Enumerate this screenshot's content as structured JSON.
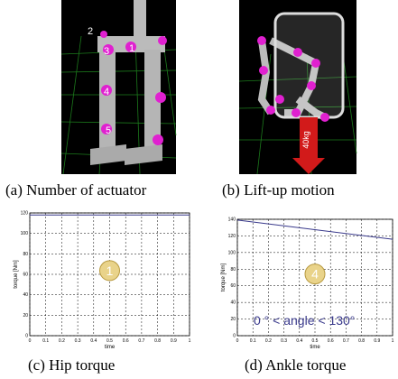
{
  "panels": [
    {
      "caption": "(a) Number of actuator",
      "labels": [
        "2",
        "3",
        "1",
        "4",
        "5"
      ]
    },
    {
      "caption": "(b) Lift-up motion",
      "load": "40kg"
    }
  ],
  "chart_data": [
    {
      "type": "line",
      "caption": "(c) Hip torque",
      "ylabel": "torque [Nm]",
      "xlabel": "time",
      "badge": "1",
      "x": [
        0,
        1
      ],
      "series": [
        {
          "color": "#3a3a8c",
          "values": [
            118,
            118
          ]
        }
      ],
      "xlim": [
        0,
        1
      ],
      "ylim": [
        0,
        120
      ],
      "xticks": [
        0,
        0.1,
        0.2,
        0.3,
        0.4,
        0.5,
        0.6,
        0.7,
        0.8,
        0.9,
        1
      ],
      "yticks": [
        0,
        20,
        40,
        60,
        80,
        100,
        120
      ],
      "grid": true
    },
    {
      "type": "line",
      "caption": "(d) Ankle torque",
      "ylabel": "torque [Nm]",
      "xlabel": "time",
      "badge": "4",
      "annotation": "0 ° < angle < 130°",
      "x": [
        0,
        1
      ],
      "series": [
        {
          "color": "#3a3a8c",
          "values": [
            139,
            116
          ]
        }
      ],
      "xlim": [
        0,
        1
      ],
      "ylim": [
        0,
        140
      ],
      "xticks": [
        0,
        0.1,
        0.2,
        0.3,
        0.4,
        0.5,
        0.6,
        0.7,
        0.8,
        0.9,
        1
      ],
      "yticks": [
        0,
        20,
        40,
        60,
        80,
        100,
        120,
        140
      ],
      "grid": true
    }
  ]
}
